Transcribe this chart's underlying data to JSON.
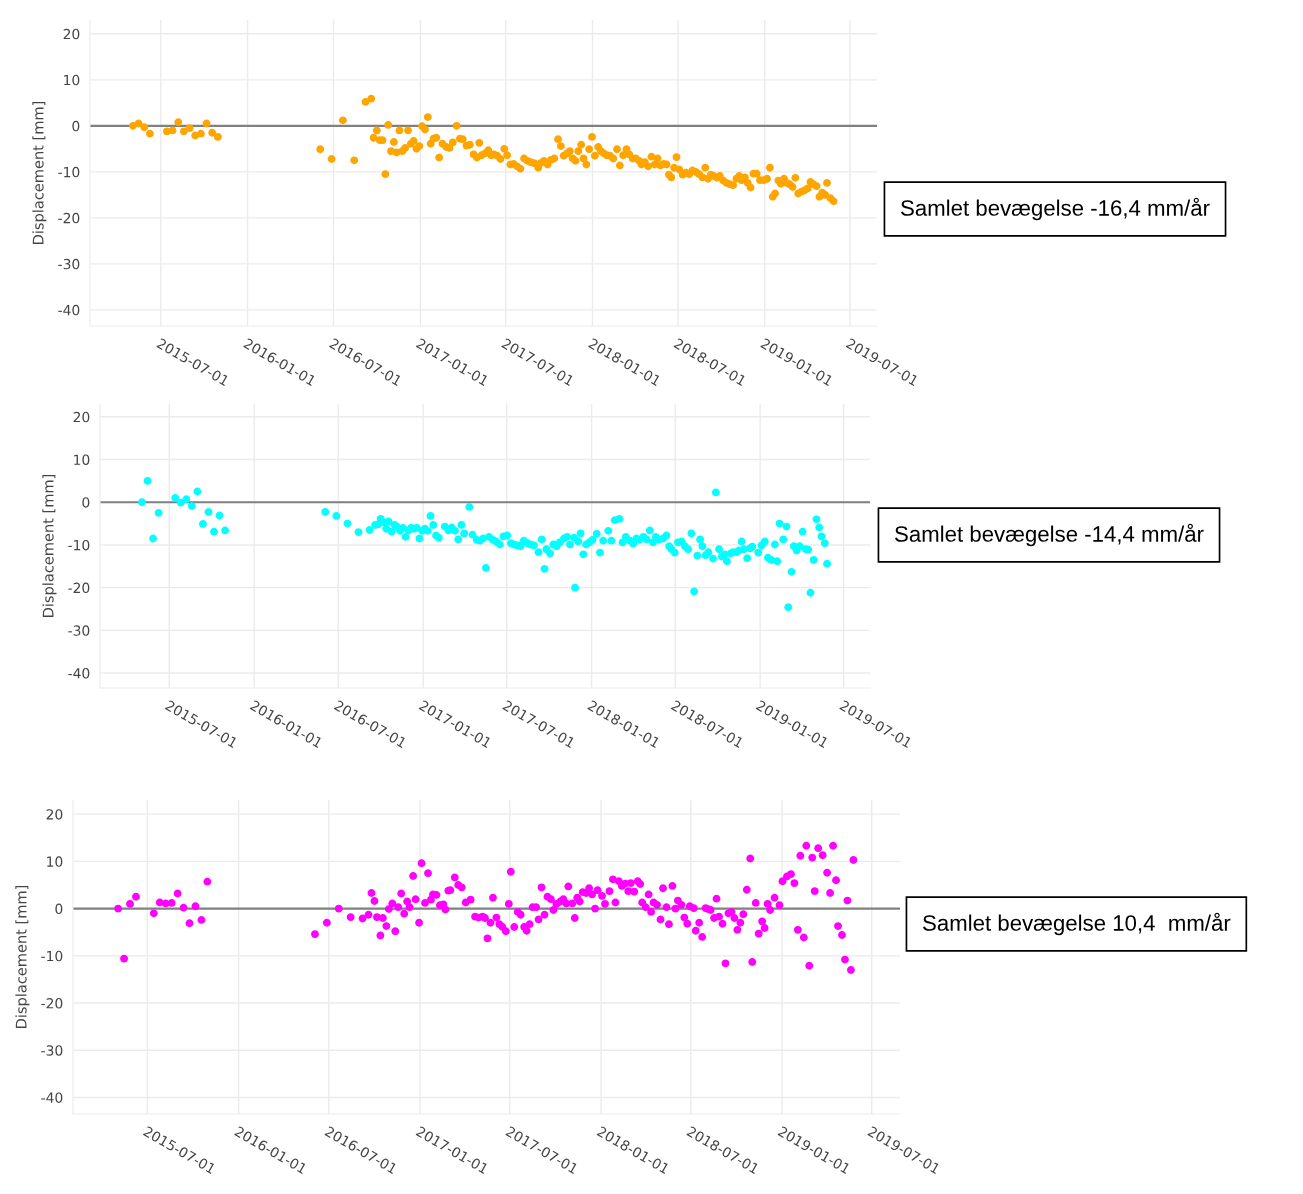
{
  "chart_data": [
    {
      "type": "scatter",
      "ylabel": "Displacement [mm]",
      "annotations": [
        "Samlet bevægelse -16,4 mm/år"
      ],
      "xlim": [
        "2015-02-01",
        "2019-08-27"
      ],
      "xticks": [
        "2015-07-01",
        "2016-01-01",
        "2016-07-01",
        "2017-01-01",
        "2017-07-01",
        "2018-01-01",
        "2018-07-01",
        "2019-01-01",
        "2019-07-01"
      ],
      "ylim": [
        -43.5,
        23
      ],
      "yticks": [
        -40,
        -30,
        -20,
        -10,
        0,
        10,
        20
      ],
      "grid": true,
      "marker": "circle",
      "ref_lines": [
        {
          "axis": "y",
          "value": 0,
          "color": "#808080"
        }
      ],
      "x": [
        "2015-05-03",
        "2015-05-15",
        "2015-05-27",
        "2015-06-08",
        "2015-07-14",
        "2015-07-26",
        "2015-08-07",
        "2015-08-19",
        "2015-08-31",
        "2015-09-12",
        "2015-09-24",
        "2015-10-06",
        "2015-10-18",
        "2015-10-30",
        "2016-06-03",
        "2016-06-27",
        "2016-07-21",
        "2016-08-14",
        "2016-09-07",
        "2016-09-19",
        "2016-09-24",
        "2016-10-01",
        "2016-10-07",
        "2016-10-13",
        "2016-10-19",
        "2016-10-25",
        "2016-10-31",
        "2016-11-06",
        "2016-11-12",
        "2016-11-18",
        "2016-11-24",
        "2016-11-30",
        "2016-12-06",
        "2016-12-12",
        "2016-12-18",
        "2016-12-24",
        "2016-12-30",
        "2017-01-05",
        "2017-01-11",
        "2017-01-17",
        "2017-01-23",
        "2017-01-29",
        "2017-02-04",
        "2017-02-10",
        "2017-02-17",
        "2017-02-25",
        "2017-03-04",
        "2017-03-11",
        "2017-03-19",
        "2017-03-26",
        "2017-04-01",
        "2017-04-09",
        "2017-04-16",
        "2017-04-24",
        "2017-05-01",
        "2017-05-06",
        "2017-05-11",
        "2017-05-18",
        "2017-05-25",
        "2017-05-31",
        "2017-06-06",
        "2017-06-13",
        "2017-06-20",
        "2017-06-28",
        "2017-07-04",
        "2017-07-11",
        "2017-07-18",
        "2017-07-25",
        "2017-08-01",
        "2017-08-09",
        "2017-08-16",
        "2017-08-23",
        "2017-08-30",
        "2017-09-08",
        "2017-09-13",
        "2017-09-20",
        "2017-09-28",
        "2017-10-05",
        "2017-10-12",
        "2017-10-20",
        "2017-10-26",
        "2017-11-01",
        "2017-11-08",
        "2017-11-14",
        "2017-11-20",
        "2017-11-26",
        "2017-12-02",
        "2017-12-08",
        "2017-12-13",
        "2017-12-19",
        "2017-12-25",
        "2017-12-31",
        "2018-01-06",
        "2018-01-13",
        "2018-01-19",
        "2018-01-25",
        "2018-01-31",
        "2018-02-07",
        "2018-02-14",
        "2018-02-22",
        "2018-02-28",
        "2018-03-07",
        "2018-03-14",
        "2018-03-20",
        "2018-03-27",
        "2018-04-03",
        "2018-04-10",
        "2018-04-15",
        "2018-04-22",
        "2018-04-29",
        "2018-05-06",
        "2018-05-13",
        "2018-05-19",
        "2018-05-25",
        "2018-06-01",
        "2018-06-07",
        "2018-06-12",
        "2018-06-17",
        "2018-06-23",
        "2018-06-28",
        "2018-07-04",
        "2018-07-11",
        "2018-07-18",
        "2018-07-25",
        "2018-08-01",
        "2018-08-08",
        "2018-08-15",
        "2018-08-22",
        "2018-08-28",
        "2018-09-03",
        "2018-09-09",
        "2018-09-15",
        "2018-09-22",
        "2018-09-28",
        "2018-10-05",
        "2018-10-12",
        "2018-10-19",
        "2018-10-26",
        "2018-11-02",
        "2018-11-08",
        "2018-11-13",
        "2018-11-20",
        "2018-11-26",
        "2018-12-02",
        "2018-12-08",
        "2018-12-15",
        "2018-12-22",
        "2018-12-30",
        "2019-01-06",
        "2019-01-12",
        "2019-01-18",
        "2019-01-23",
        "2019-01-30",
        "2019-02-04",
        "2019-02-11",
        "2019-02-16",
        "2019-02-23",
        "2019-03-01",
        "2019-03-07",
        "2019-03-13",
        "2019-03-20",
        "2019-03-27",
        "2019-04-02",
        "2019-04-08",
        "2019-04-14",
        "2019-04-21",
        "2019-04-27",
        "2019-05-03",
        "2019-05-09",
        "2019-05-13",
        "2019-05-20",
        "2019-05-27"
      ],
      "series": [
        {
          "color": "#ffa500",
          "values": [
            0,
            0.5,
            -0.3,
            -1.7,
            -1.2,
            -1.0,
            0.8,
            -1.2,
            -0.5,
            -2.1,
            -1.7,
            0.5,
            -1.5,
            -2.4,
            -5.1,
            -7.2,
            1.2,
            -7.5,
            5.2,
            5.9,
            -2.6,
            -1.0,
            -3.1,
            -3.1,
            -10.5,
            0.2,
            -5.5,
            -3.5,
            -5.8,
            -1.0,
            -5.5,
            -4.8,
            -1.0,
            -3.9,
            -3.3,
            -5.0,
            -4.4,
            -0.1,
            -0.8,
            1.9,
            -3.9,
            -2.8,
            -2.6,
            -6.9,
            -3.9,
            -4.6,
            -4.8,
            -3.6,
            0,
            -2.8,
            -2.9,
            -4.3,
            -4.1,
            -6.2,
            -6.9,
            -3.7,
            -6.4,
            -6.0,
            -5.3,
            -6.4,
            -6.2,
            -6.5,
            -7.2,
            -5.0,
            -6.4,
            -8.4,
            -8.3,
            -8.8,
            -9.3,
            -7.1,
            -7.6,
            -7.9,
            -8.1,
            -9.1,
            -8.1,
            -7.6,
            -8.4,
            -7.4,
            -7.1,
            -2.9,
            -4.4,
            -6.5,
            -6.0,
            -5.5,
            -7.1,
            -7.6,
            -5.5,
            -4.1,
            -7.1,
            -8.4,
            -5.1,
            -2.4,
            -6.5,
            -4.6,
            -5.5,
            -6.0,
            -6.4,
            -6.5,
            -7.1,
            -5.1,
            -8.6,
            -6.4,
            -5.1,
            -6.2,
            -7.1,
            -7.1,
            -7.6,
            -8.4,
            -7.9,
            -8.8,
            -6.7,
            -8.4,
            -7.1,
            -8.6,
            -8.3,
            -8.4,
            -10.6,
            -11.2,
            -9.1,
            -6.8,
            -9.5,
            -10.6,
            -10.2,
            -10.5,
            -9.7,
            -10.0,
            -10.5,
            -11.2,
            -9.1,
            -11.5,
            -10.6,
            -10.9,
            -11.3,
            -10.9,
            -11.9,
            -12.4,
            -12.7,
            -12.9,
            -11.5,
            -10.9,
            -11.8,
            -11.2,
            -12.4,
            -13.4,
            -10.4,
            -10.4,
            -11.8,
            -11.8,
            -11.5,
            -9.1,
            -15.4,
            -14.7,
            -11.9,
            -12.6,
            -11.5,
            -12.4,
            -12.7,
            -13.3,
            -11.3,
            -14.7,
            -14.3,
            -14.0,
            -13.6,
            -12.2,
            -12.7,
            -13.1,
            -15.4,
            -14.5,
            -15.0,
            -12.4,
            -15.7,
            -16.4
          ]
        }
      ]
    },
    {
      "type": "scatter",
      "ylabel": "Displacement [mm]",
      "annotations": [
        "Samlet bevægelse -14,4 mm/år"
      ],
      "xlim": [
        "2015-02-01",
        "2019-08-27"
      ],
      "xticks": [
        "2015-07-01",
        "2016-01-01",
        "2016-07-01",
        "2017-01-01",
        "2017-07-01",
        "2018-01-01",
        "2018-07-01",
        "2019-01-01",
        "2019-07-01"
      ],
      "ylim": [
        -43.5,
        23
      ],
      "yticks": [
        -40,
        -30,
        -20,
        -10,
        0,
        10,
        20
      ],
      "grid": true,
      "marker": "circle",
      "ref_lines": [
        {
          "axis": "y",
          "value": 0,
          "color": "#808080"
        }
      ],
      "x": [
        "2015-05-03",
        "2015-05-15",
        "2015-05-27",
        "2015-06-08",
        "2015-07-14",
        "2015-07-26",
        "2015-08-07",
        "2015-08-19",
        "2015-08-31",
        "2015-09-12",
        "2015-09-24",
        "2015-10-06",
        "2015-10-18",
        "2015-10-30",
        "2016-06-03",
        "2016-06-27",
        "2016-07-21",
        "2016-08-14",
        "2016-09-07",
        "2016-09-19",
        "2016-09-25",
        "2016-10-01",
        "2016-10-07",
        "2016-10-13",
        "2016-10-18",
        "2016-10-25",
        "2016-10-31",
        "2016-11-05",
        "2016-11-12",
        "2016-11-18",
        "2016-11-24",
        "2016-11-30",
        "2016-12-06",
        "2016-12-12",
        "2016-12-18",
        "2016-12-24",
        "2016-12-30",
        "2017-01-05",
        "2017-01-11",
        "2017-01-17",
        "2017-01-23",
        "2017-01-29",
        "2017-02-04",
        "2017-02-17",
        "2017-02-25",
        "2017-03-04",
        "2017-03-11",
        "2017-03-18",
        "2017-03-25",
        "2017-03-31",
        "2017-04-11",
        "2017-04-18",
        "2017-04-27",
        "2017-05-04",
        "2017-05-11",
        "2017-05-17",
        "2017-05-24",
        "2017-06-01",
        "2017-06-08",
        "2017-06-16",
        "2017-06-24",
        "2017-07-02",
        "2017-07-10",
        "2017-07-17",
        "2017-07-24",
        "2017-07-31",
        "2017-08-07",
        "2017-08-15",
        "2017-08-22",
        "2017-08-29",
        "2017-09-08",
        "2017-09-15",
        "2017-09-21",
        "2017-09-25",
        "2017-10-03",
        "2017-10-10",
        "2017-10-17",
        "2017-10-24",
        "2017-11-02",
        "2017-11-09",
        "2017-11-15",
        "2017-11-24",
        "2017-11-26",
        "2017-12-03",
        "2017-12-08",
        "2017-12-14",
        "2017-12-20",
        "2017-12-27",
        "2018-01-03",
        "2018-01-12",
        "2018-01-19",
        "2018-01-26",
        "2018-02-06",
        "2018-02-13",
        "2018-02-20",
        "2018-03-02",
        "2018-03-09",
        "2018-03-16",
        "2018-03-25",
        "2018-04-01",
        "2018-04-08",
        "2018-04-15",
        "2018-04-23",
        "2018-04-30",
        "2018-05-07",
        "2018-05-14",
        "2018-05-20",
        "2018-05-27",
        "2018-06-05",
        "2018-06-12",
        "2018-06-18",
        "2018-06-23",
        "2018-06-30",
        "2018-07-07",
        "2018-07-15",
        "2018-07-22",
        "2018-07-29",
        "2018-08-05",
        "2018-08-11",
        "2018-08-18",
        "2018-08-24",
        "2018-08-29",
        "2018-09-05",
        "2018-09-11",
        "2018-09-21",
        "2018-09-27",
        "2018-10-04",
        "2018-10-10",
        "2018-10-16",
        "2018-10-21",
        "2018-10-29",
        "2018-11-03",
        "2018-11-11",
        "2018-11-16",
        "2018-11-22",
        "2018-11-27",
        "2018-12-04",
        "2018-12-10",
        "2018-12-15",
        "2018-12-28",
        "2019-01-04",
        "2019-01-11",
        "2019-01-18",
        "2019-01-25",
        "2019-02-02",
        "2019-02-07",
        "2019-02-12",
        "2019-02-20",
        "2019-02-27",
        "2019-03-03",
        "2019-03-10",
        "2019-03-15",
        "2019-03-21",
        "2019-03-28",
        "2019-04-03",
        "2019-04-10",
        "2019-04-15",
        "2019-04-20",
        "2019-04-27",
        "2019-05-03",
        "2019-05-09",
        "2019-05-14",
        "2019-05-21",
        "2019-05-26"
      ],
      "series": [
        {
          "color": "#00ffff",
          "values": [
            0,
            5.0,
            -8.5,
            -2.5,
            1.0,
            -0.1,
            0.7,
            -0.9,
            2.5,
            -5.1,
            -2.3,
            -6.9,
            -3.1,
            -6.6,
            -2.3,
            -3.2,
            -5.0,
            -7.0,
            -6.5,
            -5.3,
            -5.2,
            -3.9,
            -4.7,
            -6.2,
            -4.5,
            -6.9,
            -5.3,
            -5.7,
            -6.7,
            -6.0,
            -8.1,
            -6.6,
            -6.0,
            -6.2,
            -6.0,
            -8.5,
            -6.7,
            -6.2,
            -6.7,
            -3.2,
            -5.3,
            -7.8,
            -8.3,
            -5.7,
            -6.6,
            -5.9,
            -6.7,
            -8.7,
            -5.3,
            -7.3,
            -1.1,
            -7.6,
            -8.8,
            -9.0,
            -8.5,
            -15.4,
            -8.1,
            -8.8,
            -9.2,
            -9.9,
            -8.0,
            -7.8,
            -9.6,
            -9.9,
            -10.1,
            -10.3,
            -9.0,
            -9.6,
            -9.9,
            -10.1,
            -11.7,
            -8.7,
            -15.6,
            -11.0,
            -12.0,
            -9.9,
            -10.3,
            -9.4,
            -8.5,
            -8.1,
            -9.9,
            -8.3,
            -20.0,
            -9.2,
            -7.3,
            -12.2,
            -9.9,
            -9.4,
            -8.8,
            -7.4,
            -11.8,
            -9.0,
            -6.7,
            -9.0,
            -4.2,
            -3.9,
            -9.4,
            -8.1,
            -9.0,
            -9.7,
            -8.5,
            -8.8,
            -8.1,
            -8.7,
            -6.6,
            -9.4,
            -8.1,
            -8.8,
            -8.5,
            -7.8,
            -10.3,
            -11.0,
            -11.8,
            -9.4,
            -9.2,
            -10.3,
            -11.0,
            -7.3,
            -20.9,
            -12.5,
            -8.7,
            -10.3,
            -12.4,
            -11.7,
            -13.2,
            2.3,
            -11.0,
            -12.7,
            -12.2,
            -13.8,
            -12.0,
            -11.7,
            -11.7,
            -11.3,
            -9.2,
            -11.0,
            -13.1,
            -10.8,
            -10.4,
            -11.8,
            -10.1,
            -9.2,
            -13.0,
            -13.5,
            -9.9,
            -13.8,
            -5.0,
            -8.7,
            -5.7,
            -24.6,
            -16.3,
            -10.3,
            -11.3,
            -10.3,
            -6.9,
            -11.0,
            -11.1,
            -21.2,
            -13.5,
            -4.0,
            -5.9,
            -8.0,
            -9.6,
            -14.4
          ]
        }
      ]
    },
    {
      "type": "scatter",
      "ylabel": "Displacement [mm]",
      "annotations": [
        "Samlet bevægelse 10,4  mm/år"
      ],
      "xlim": [
        "2015-02-01",
        "2019-08-27"
      ],
      "xticks": [
        "2015-07-01",
        "2016-01-01",
        "2016-07-01",
        "2017-01-01",
        "2017-07-01",
        "2018-01-01",
        "2018-07-01",
        "2019-01-01",
        "2019-07-01"
      ],
      "ylim": [
        -43.5,
        23
      ],
      "yticks": [
        -40,
        -30,
        -20,
        -10,
        0,
        10,
        20
      ],
      "grid": true,
      "marker": "circle",
      "ref_lines": [
        {
          "axis": "y",
          "value": 0,
          "color": "#808080"
        }
      ],
      "x": [
        "2015-05-03",
        "2015-05-15",
        "2015-05-27",
        "2015-06-08",
        "2015-07-14",
        "2015-07-26",
        "2015-08-07",
        "2015-08-19",
        "2015-08-31",
        "2015-09-12",
        "2015-09-24",
        "2015-10-06",
        "2015-10-18",
        "2015-10-30",
        "2016-06-03",
        "2016-06-27",
        "2016-07-21",
        "2016-08-14",
        "2016-09-07",
        "2016-09-19",
        "2016-09-25",
        "2016-10-01",
        "2016-10-06",
        "2016-10-13",
        "2016-10-18",
        "2016-10-25",
        "2016-10-30",
        "2016-11-06",
        "2016-11-12",
        "2016-11-18",
        "2016-11-24",
        "2016-11-30",
        "2016-12-06",
        "2016-12-11",
        "2016-12-18",
        "2016-12-23",
        "2016-12-30",
        "2017-01-04",
        "2017-01-11",
        "2017-01-17",
        "2017-01-23",
        "2017-01-27",
        "2017-02-03",
        "2017-02-10",
        "2017-02-17",
        "2017-02-21",
        "2017-02-27",
        "2017-03-03",
        "2017-03-12",
        "2017-03-19",
        "2017-03-26",
        "2017-04-03",
        "2017-04-13",
        "2017-04-22",
        "2017-04-29",
        "2017-05-07",
        "2017-05-12",
        "2017-05-17",
        "2017-05-23",
        "2017-05-28",
        "2017-06-04",
        "2017-06-10",
        "2017-06-16",
        "2017-06-23",
        "2017-06-29",
        "2017-07-03",
        "2017-07-10",
        "2017-07-17",
        "2017-07-23",
        "2017-07-30",
        "2017-08-04",
        "2017-08-10",
        "2017-08-16",
        "2017-08-23",
        "2017-08-28",
        "2017-09-03",
        "2017-09-09",
        "2017-09-15",
        "2017-09-22",
        "2017-09-27",
        "2017-10-03",
        "2017-10-11",
        "2017-10-17",
        "2017-10-23",
        "2017-10-27",
        "2017-11-04",
        "2017-11-09",
        "2017-11-14",
        "2017-11-19",
        "2017-11-25",
        "2017-12-02",
        "2017-12-08",
        "2017-12-14",
        "2017-12-20",
        "2017-12-25",
        "2018-01-03",
        "2018-01-09",
        "2018-01-18",
        "2018-01-25",
        "2018-01-30",
        "2018-02-06",
        "2018-02-12",
        "2018-02-19",
        "2018-02-25",
        "2018-03-02",
        "2018-03-09",
        "2018-03-16",
        "2018-03-21",
        "2018-03-25",
        "2018-04-01",
        "2018-04-07",
        "2018-04-12",
        "2018-04-17",
        "2018-04-24",
        "2018-05-01",
        "2018-05-06",
        "2018-05-13",
        "2018-05-18",
        "2018-05-25",
        "2018-05-31",
        "2018-06-05",
        "2018-06-12",
        "2018-06-18",
        "2018-06-24",
        "2018-06-29",
        "2018-07-07",
        "2018-07-11",
        "2018-07-18",
        "2018-07-24",
        "2018-07-31",
        "2018-08-05",
        "2018-08-10",
        "2018-08-17",
        "2018-08-22",
        "2018-08-27",
        "2018-09-03",
        "2018-09-09",
        "2018-09-15",
        "2018-09-21",
        "2018-09-27",
        "2018-10-03",
        "2018-10-09",
        "2018-10-15",
        "2018-10-22",
        "2018-10-29",
        "2018-11-02",
        "2018-11-09",
        "2018-11-15",
        "2018-11-22",
        "2018-11-27",
        "2018-12-03",
        "2018-12-08",
        "2018-12-17",
        "2018-12-27",
        "2019-01-02",
        "2019-01-11",
        "2019-01-19",
        "2019-01-26",
        "2019-02-02",
        "2019-02-07",
        "2019-02-14",
        "2019-02-19",
        "2019-02-25",
        "2019-03-03",
        "2019-03-08",
        "2019-03-15",
        "2019-03-24",
        "2019-04-02",
        "2019-04-08",
        "2019-04-14",
        "2019-04-20",
        "2019-04-24",
        "2019-05-02",
        "2019-05-08",
        "2019-05-13",
        "2019-05-20",
        "2019-05-25"
      ],
      "series": [
        {
          "color": "#ff00ff",
          "values": [
            0,
            -10.6,
            1.0,
            2.5,
            -1.0,
            1.3,
            1.1,
            1.2,
            3.2,
            0.2,
            -3.1,
            0.5,
            -2.4,
            5.7,
            -5.4,
            -3.0,
            0,
            -1.8,
            -2.1,
            -1.3,
            3.3,
            1.6,
            -1.8,
            -5.7,
            -2.0,
            -3.7,
            -0.1,
            1.1,
            -4.8,
            0.3,
            3.2,
            -1.1,
            1.5,
            0.3,
            6.9,
            2.0,
            -3.0,
            9.6,
            1.2,
            7.5,
            1.9,
            3.0,
            2.9,
            0.7,
            0.9,
            -0.2,
            3.8,
            3.9,
            6.6,
            5.0,
            4.5,
            1.3,
            1.9,
            -1.7,
            -1.9,
            -1.7,
            -2.0,
            -6.3,
            -3.0,
            2.3,
            -1.9,
            -3.3,
            -3.9,
            -4.8,
            1.0,
            7.8,
            -3.9,
            -0.7,
            -1.3,
            -3.9,
            -4.7,
            -3.3,
            0.3,
            0.3,
            -2.3,
            4.5,
            -1.3,
            2.5,
            2.0,
            -0.3,
            1.0,
            1.5,
            2.0,
            1.1,
            4.7,
            1.1,
            -2.0,
            2.3,
            1.5,
            3.5,
            3.3,
            4.3,
            3.0,
            0,
            3.9,
            2.7,
            1.0,
            3.7,
            6.2,
            1.3,
            5.8,
            4.8,
            5.3,
            3.7,
            5.4,
            3.6,
            5.8,
            5.2,
            1.3,
            0.3,
            3.0,
            -0.7,
            1.3,
            0.8,
            -2.3,
            4.3,
            0.3,
            -3.3,
            4.8,
            0,
            1.7,
            0.8,
            -1.9,
            -3.2,
            0.5,
            0.1,
            -4.7,
            -3.0,
            -6.0,
            0.1,
            -0.1,
            -0.3,
            -2.0,
            2.1,
            -1.7,
            -3.2,
            -11.6,
            -1.0,
            -0.7,
            -2.0,
            -4.5,
            -3.0,
            -1.2,
            4.0,
            10.6,
            -11.3,
            1.2,
            -5.3,
            -2.7,
            -4.1,
            1.0,
            -0.3,
            2.3,
            0.7,
            5.8,
            6.8,
            7.3,
            5.4,
            -4.5,
            11.2,
            -6.1,
            13.3,
            -12.1,
            10.8,
            3.7,
            12.8,
            11.3,
            7.6,
            3.3,
            13.3,
            6.0,
            -3.7,
            -5.6,
            -10.8,
            1.7,
            -13.0,
            10.3
          ]
        }
      ]
    }
  ]
}
